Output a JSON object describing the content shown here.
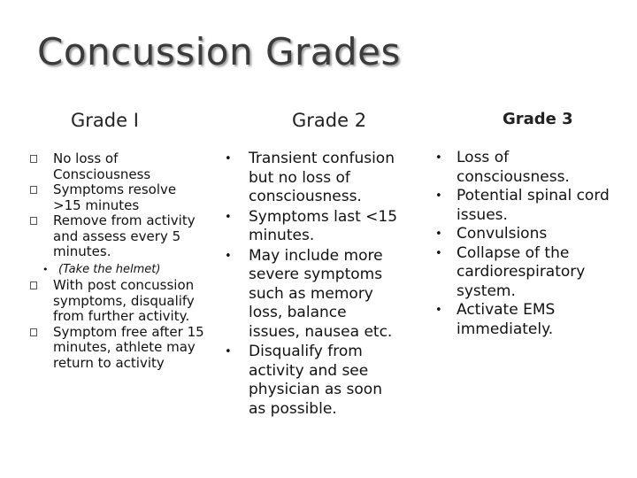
{
  "title": "Concussion Grades",
  "grade1": {
    "heading": "Grade I",
    "items": [
      "No loss of Consciousness",
      "Symptoms resolve >15 minutes",
      "Remove from activity and assess every 5 minutes.",
      "With post concussion symptoms, disqualify from further activity.",
      "Symptom free after 15 minutes, athlete may return to activity"
    ],
    "subitem": "(Take the helmet)"
  },
  "grade2": {
    "heading": "Grade 2",
    "items": [
      "Transient confusion but no loss of consciousness.",
      "Symptoms last <15 minutes.",
      "May include more severe symptoms such as memory loss, balance issues, nausea etc.",
      "Disqualify from activity and see physician as soon as possible."
    ]
  },
  "grade3": {
    "heading": "Grade 3",
    "items": [
      "Loss of consciousness.",
      "Potential spinal cord issues.",
      "Convulsions",
      "Collapse of the cardiorespiratory system.",
      "Activate EMS immediately."
    ]
  }
}
